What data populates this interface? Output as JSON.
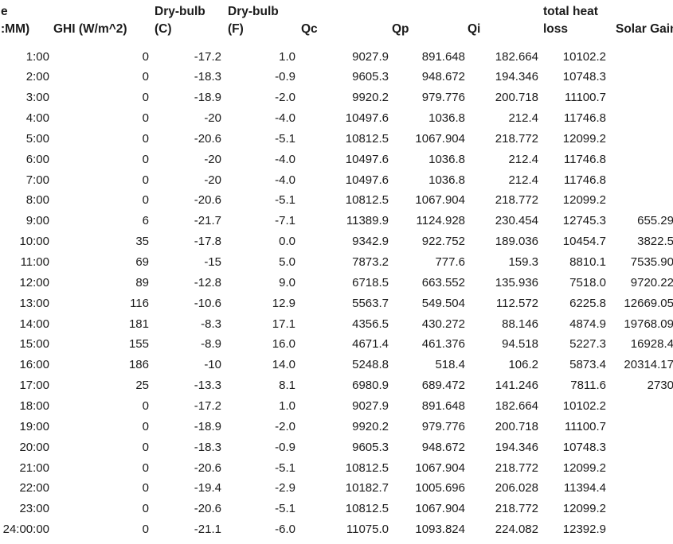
{
  "page": {
    "background_color": "#ffffff",
    "text_color": "#1b1b1b"
  },
  "table": {
    "description_visible_title": "",
    "columns": [
      {
        "id": "time",
        "header_lines": [
          "e",
          ":MM)"
        ]
      },
      {
        "id": "ghi",
        "header_lines": [
          "",
          "GHI (W/m^2)"
        ]
      },
      {
        "id": "drybulb_c",
        "header_lines": [
          "Dry-bulb",
          "(C)"
        ]
      },
      {
        "id": "drybulb_f",
        "header_lines": [
          "Dry-bulb",
          "(F)"
        ]
      },
      {
        "id": "qc",
        "header_lines": [
          "",
          "Qc"
        ]
      },
      {
        "id": "qp",
        "header_lines": [
          "",
          "Qp"
        ]
      },
      {
        "id": "qi",
        "header_lines": [
          "",
          "Qi"
        ]
      },
      {
        "id": "total_heat_loss",
        "header_lines": [
          "total heat",
          "loss"
        ]
      },
      {
        "id": "solar_gain",
        "header_lines": [
          "",
          "Solar Gain"
        ]
      }
    ],
    "rows": [
      [
        "1:00",
        "0",
        "-17.2",
        "1.0",
        "9027.9",
        "891.648",
        "182.664",
        "10102.2",
        ""
      ],
      [
        "2:00",
        "0",
        "-18.3",
        "-0.9",
        "9605.3",
        "948.672",
        "194.346",
        "10748.3",
        ""
      ],
      [
        "3:00",
        "0",
        "-18.9",
        "-2.0",
        "9920.2",
        "979.776",
        "200.718",
        "11100.7",
        ""
      ],
      [
        "4:00",
        "0",
        "-20",
        "-4.0",
        "10497.6",
        "1036.8",
        "212.4",
        "11746.8",
        ""
      ],
      [
        "5:00",
        "0",
        "-20.6",
        "-5.1",
        "10812.5",
        "1067.904",
        "218.772",
        "12099.2",
        ""
      ],
      [
        "6:00",
        "0",
        "-20",
        "-4.0",
        "10497.6",
        "1036.8",
        "212.4",
        "11746.8",
        ""
      ],
      [
        "7:00",
        "0",
        "-20",
        "-4.0",
        "10497.6",
        "1036.8",
        "212.4",
        "11746.8",
        ""
      ],
      [
        "8:00",
        "0",
        "-20.6",
        "-5.1",
        "10812.5",
        "1067.904",
        "218.772",
        "12099.2",
        ""
      ],
      [
        "9:00",
        "6",
        "-21.7",
        "-7.1",
        "11389.9",
        "1124.928",
        "230.454",
        "12745.3",
        "655.29"
      ],
      [
        "10:00",
        "35",
        "-17.8",
        "0.0",
        "9342.9",
        "922.752",
        "189.036",
        "10454.7",
        "3822.5"
      ],
      [
        "11:00",
        "69",
        "-15",
        "5.0",
        "7873.2",
        "777.6",
        "159.3",
        "8810.1",
        "7535.90"
      ],
      [
        "12:00",
        "89",
        "-12.8",
        "9.0",
        "6718.5",
        "663.552",
        "135.936",
        "7518.0",
        "9720.22"
      ],
      [
        "13:00",
        "116",
        "-10.6",
        "12.9",
        "5563.7",
        "549.504",
        "112.572",
        "6225.8",
        "12669.05"
      ],
      [
        "14:00",
        "181",
        "-8.3",
        "17.1",
        "4356.5",
        "430.272",
        "88.146",
        "4874.9",
        "19768.09"
      ],
      [
        "15:00",
        "155",
        "-8.9",
        "16.0",
        "4671.4",
        "461.376",
        "94.518",
        "5227.3",
        "16928.4"
      ],
      [
        "16:00",
        "186",
        "-10",
        "14.0",
        "5248.8",
        "518.4",
        "106.2",
        "5873.4",
        "20314.17"
      ],
      [
        "17:00",
        "25",
        "-13.3",
        "8.1",
        "6980.9",
        "689.472",
        "141.246",
        "7811.6",
        "2730"
      ],
      [
        "18:00",
        "0",
        "-17.2",
        "1.0",
        "9027.9",
        "891.648",
        "182.664",
        "10102.2",
        ""
      ],
      [
        "19:00",
        "0",
        "-18.9",
        "-2.0",
        "9920.2",
        "979.776",
        "200.718",
        "11100.7",
        ""
      ],
      [
        "20:00",
        "0",
        "-18.3",
        "-0.9",
        "9605.3",
        "948.672",
        "194.346",
        "10748.3",
        ""
      ],
      [
        "21:00",
        "0",
        "-20.6",
        "-5.1",
        "10812.5",
        "1067.904",
        "218.772",
        "12099.2",
        ""
      ],
      [
        "22:00",
        "0",
        "-19.4",
        "-2.9",
        "10182.7",
        "1005.696",
        "206.028",
        "11394.4",
        ""
      ],
      [
        "23:00",
        "0",
        "-20.6",
        "-5.1",
        "10812.5",
        "1067.904",
        "218.772",
        "12099.2",
        ""
      ],
      [
        "24:00:00",
        "0",
        "-21.1",
        "-6.0",
        "11075.0",
        "1093.824",
        "224.082",
        "12392.9",
        ""
      ]
    ]
  }
}
